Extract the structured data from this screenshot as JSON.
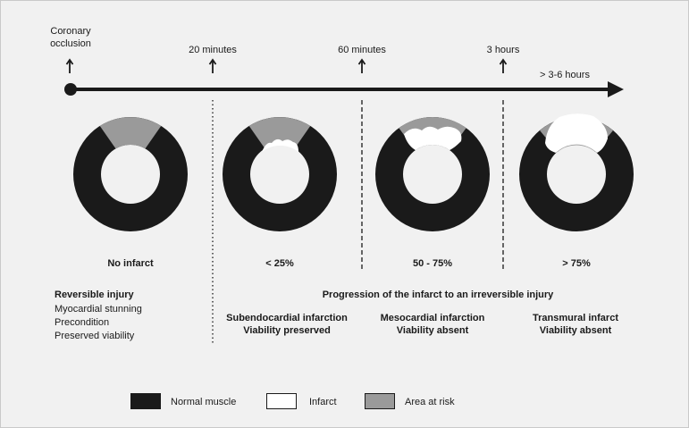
{
  "timeline": {
    "start_label": "Coronary\nocclusion",
    "markers": [
      "20 minutes",
      "60 minutes",
      "3 hours"
    ],
    "end_label": "> 3-6 hours"
  },
  "stages": [
    {
      "infarct_size": "No infarct"
    },
    {
      "infarct_size": "< 25%",
      "description": "Subendocardial infarction\nViability preserved"
    },
    {
      "infarct_size": "50 - 75%",
      "description": "Mesocardial infarction\nViability absent"
    },
    {
      "infarct_size": "> 75%",
      "description": "Transmural infarct\nViability absent"
    }
  ],
  "left_block": {
    "heading": "Reversible injury",
    "lines": [
      "Myocardial stunning",
      "Precondition",
      "Preserved viability"
    ]
  },
  "progression_label": "Progression of the infarct to an irreversible injury",
  "legend": [
    {
      "label": "Normal muscle",
      "color": "#1a1a1a"
    },
    {
      "label": "Infarct",
      "color": "#ffffff"
    },
    {
      "label": "Area at risk",
      "color": "#9a9a9a"
    }
  ],
  "colors": {
    "muscle": "#1a1a1a",
    "risk": "#9a9a9a",
    "infarct": "#ffffff",
    "background": "#f1f1f1"
  }
}
